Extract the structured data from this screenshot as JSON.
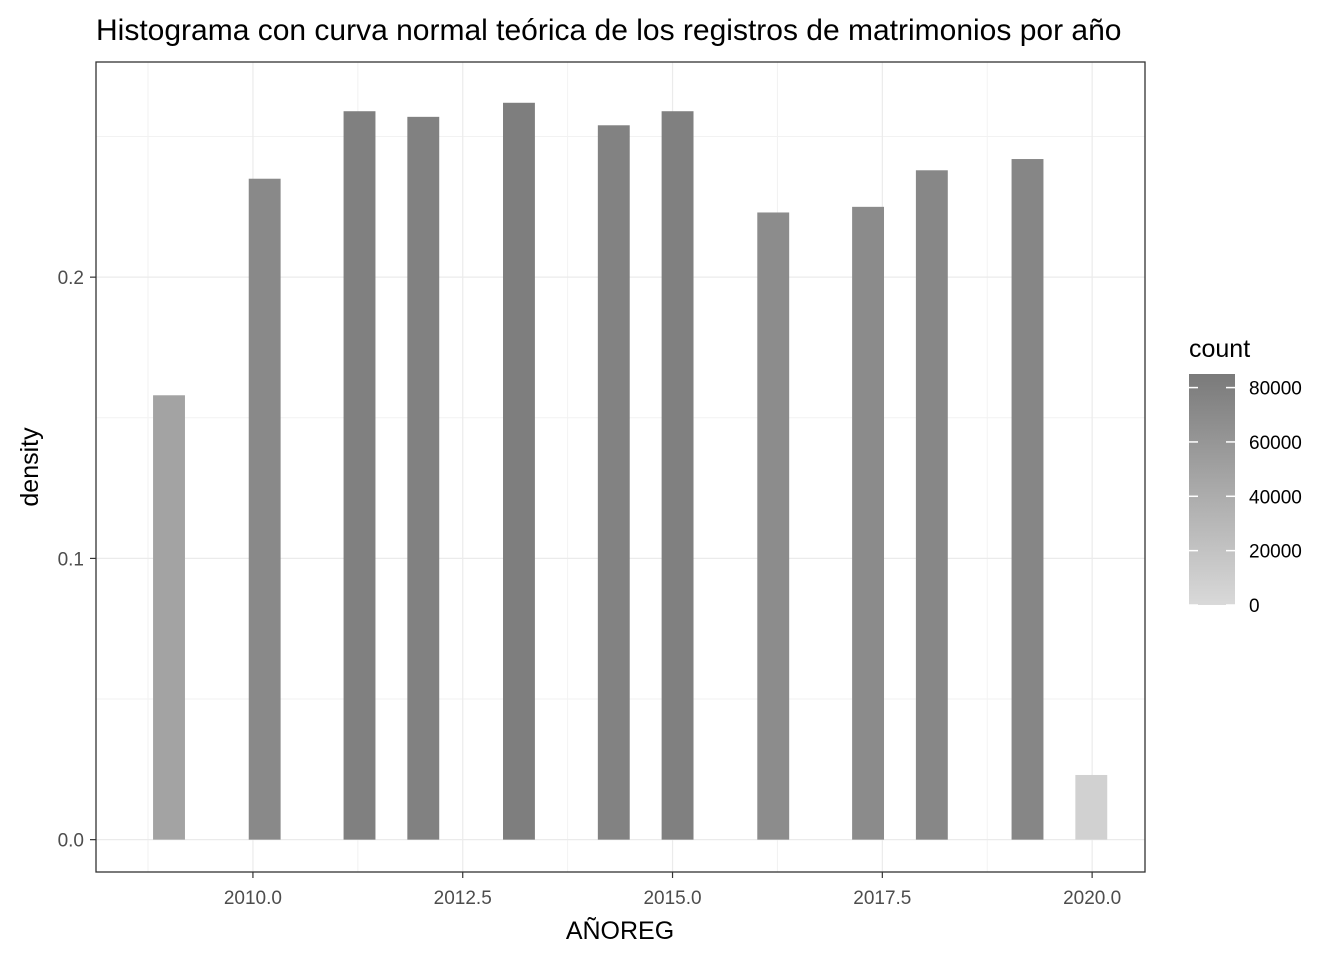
{
  "chart_data": {
    "type": "bar",
    "title": "Histograma con curva normal teórica de los registros de matrimonios por año",
    "xlabel": "AÑOREG",
    "ylabel": "density",
    "xlim": [
      2008.13,
      2020.63
    ],
    "ylim": [
      -0.0115,
      0.2765
    ],
    "x_ticks": [
      2010.0,
      2012.5,
      2015.0,
      2017.5,
      2020.0
    ],
    "x_tick_labels": [
      "2010.0",
      "2012.5",
      "2015.0",
      "2017.5",
      "2020.0"
    ],
    "y_ticks": [
      0.0,
      0.1,
      0.2
    ],
    "y_tick_labels": [
      "0.0",
      "0.1",
      "0.2"
    ],
    "bin_width": 0.38,
    "x": [
      2009.0,
      2010.14,
      2011.27,
      2012.03,
      2013.17,
      2014.3,
      2015.06,
      2016.2,
      2017.33,
      2018.09,
      2019.23,
      2019.99
    ],
    "values": [
      0.158,
      0.235,
      0.259,
      0.257,
      0.262,
      0.254,
      0.259,
      0.223,
      0.225,
      0.238,
      0.242,
      0.023
    ],
    "counts": [
      48000,
      72000,
      80000,
      79000,
      81000,
      78000,
      80000,
      69000,
      70000,
      73000,
      74000,
      7000
    ],
    "grid": true,
    "legend": {
      "title": "count",
      "position": "right",
      "min": 0,
      "max": 85000,
      "breaks": [
        0,
        20000,
        40000,
        60000,
        80000
      ],
      "break_labels": [
        "0",
        "20000",
        "40000",
        "60000",
        "80000"
      ],
      "low_color": "#d9d9d9",
      "high_color": "#7a7a7a"
    },
    "colors": {
      "panel_border": "#333333",
      "grid_major": "#ebebeb",
      "grid_minor": "#f2f2f2",
      "tick": "#333333"
    }
  }
}
